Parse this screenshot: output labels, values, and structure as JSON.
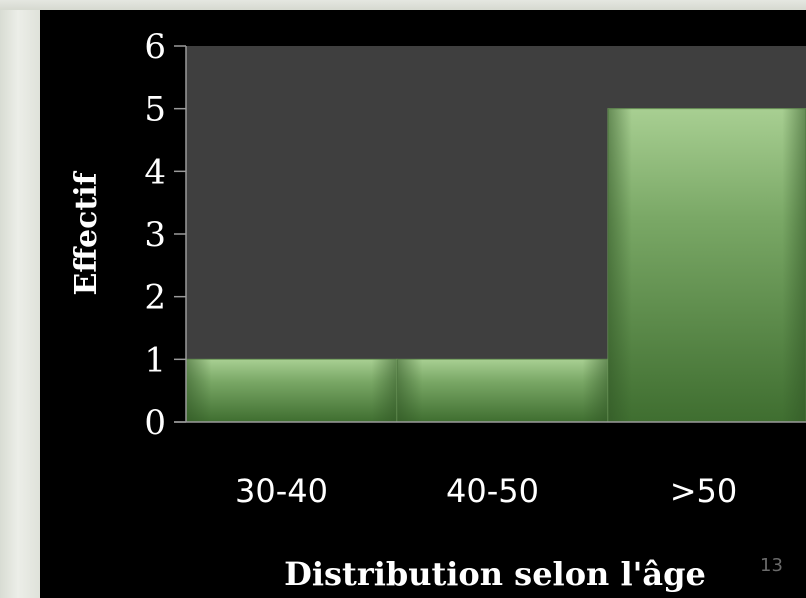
{
  "slide": {
    "page_number": "13"
  },
  "colors": {
    "background": "#000000",
    "plot_area": "#3f3f3f",
    "bar_fill": "#4f7f3f",
    "bar_highlight": "#a8cf92",
    "text": "#ffffff",
    "axis": "#9a9a9a"
  },
  "chart_data": {
    "type": "bar",
    "title": "",
    "categories": [
      "30-40",
      "40-50",
      ">50"
    ],
    "values": [
      1,
      1,
      5
    ],
    "xlabel": "Distribution selon l'âge",
    "ylabel": "Effectif",
    "ylim": [
      0,
      6
    ],
    "yticks": [
      "0",
      "1",
      "2",
      "3",
      "4",
      "5",
      "6"
    ],
    "grid": false,
    "legend": "none"
  }
}
